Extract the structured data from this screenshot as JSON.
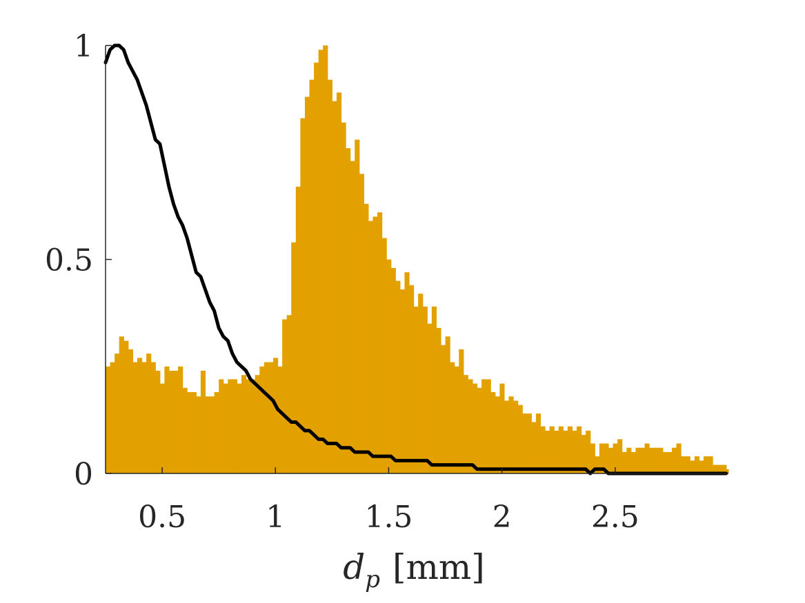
{
  "chart_data": {
    "type": "bar",
    "title": "",
    "xlabel": "d_p [mm]",
    "xlabel_parts": {
      "symbol": "d",
      "subscript": "p",
      "unit": "[mm]"
    },
    "ylabel": "",
    "xlim": [
      0.25,
      3.0
    ],
    "ylim": [
      0,
      1
    ],
    "xticks": [
      0.5,
      1,
      1.5,
      2,
      2.5
    ],
    "xtick_labels": [
      "0.5",
      "1",
      "1.5",
      "2",
      "2.5"
    ],
    "yticks": [
      0,
      0.5,
      1
    ],
    "ytick_labels": [
      "0",
      "0.5",
      "1"
    ],
    "grid": false,
    "legend": "none",
    "colors": {
      "histogram": "#E3A100",
      "curve": "#000000",
      "axis": "#262626"
    },
    "histogram": {
      "bin_width": 0.02,
      "bin_start": 0.25,
      "values": [
        0.25,
        0.26,
        0.28,
        0.32,
        0.31,
        0.29,
        0.26,
        0.27,
        0.26,
        0.28,
        0.26,
        0.24,
        0.21,
        0.25,
        0.24,
        0.24,
        0.25,
        0.2,
        0.19,
        0.19,
        0.18,
        0.24,
        0.18,
        0.18,
        0.19,
        0.22,
        0.21,
        0.22,
        0.22,
        0.21,
        0.23,
        0.22,
        0.22,
        0.23,
        0.25,
        0.26,
        0.26,
        0.27,
        0.25,
        0.36,
        0.37,
        0.54,
        0.67,
        0.83,
        0.88,
        0.92,
        0.96,
        0.99,
        1.0,
        0.92,
        0.87,
        0.89,
        0.82,
        0.76,
        0.73,
        0.78,
        0.7,
        0.63,
        0.59,
        0.6,
        0.61,
        0.55,
        0.5,
        0.48,
        0.45,
        0.43,
        0.47,
        0.44,
        0.39,
        0.42,
        0.39,
        0.35,
        0.39,
        0.34,
        0.3,
        0.32,
        0.26,
        0.25,
        0.29,
        0.23,
        0.22,
        0.21,
        0.2,
        0.22,
        0.22,
        0.19,
        0.18,
        0.21,
        0.17,
        0.18,
        0.17,
        0.16,
        0.14,
        0.14,
        0.12,
        0.14,
        0.11,
        0.1,
        0.11,
        0.1,
        0.11,
        0.1,
        0.11,
        0.1,
        0.11,
        0.09,
        0.1,
        0.07,
        0.04,
        0.07,
        0.07,
        0.06,
        0.07,
        0.08,
        0.05,
        0.06,
        0.05,
        0.06,
        0.06,
        0.07,
        0.06,
        0.06,
        0.06,
        0.05,
        0.05,
        0.06,
        0.07,
        0.04,
        0.04,
        0.03,
        0.04,
        0.03,
        0.04,
        0.04,
        0.02,
        0.02,
        0.02,
        0.01
      ]
    },
    "series": [
      {
        "type": "line",
        "x": [
          0.25,
          0.27,
          0.29,
          0.31,
          0.33,
          0.35,
          0.37,
          0.39,
          0.41,
          0.43,
          0.45,
          0.47,
          0.49,
          0.51,
          0.53,
          0.55,
          0.57,
          0.59,
          0.61,
          0.63,
          0.65,
          0.67,
          0.69,
          0.71,
          0.73,
          0.75,
          0.77,
          0.79,
          0.81,
          0.83,
          0.85,
          0.87,
          0.89,
          0.91,
          0.93,
          0.95,
          0.97,
          0.99,
          1.01,
          1.03,
          1.05,
          1.07,
          1.09,
          1.11,
          1.13,
          1.15,
          1.17,
          1.19,
          1.21,
          1.23,
          1.25,
          1.27,
          1.29,
          1.31,
          1.33,
          1.35,
          1.37,
          1.39,
          1.41,
          1.43,
          1.45,
          1.47,
          1.49,
          1.51,
          1.53,
          1.55,
          1.57,
          1.59,
          1.61,
          1.63,
          1.65,
          1.67,
          1.69,
          1.71,
          1.73,
          1.75,
          1.77,
          1.79,
          1.81,
          1.83,
          1.85,
          1.87,
          1.89,
          1.91,
          1.93,
          1.95,
          1.97,
          1.99,
          2.01,
          2.03,
          2.05,
          2.07,
          2.09,
          2.11,
          2.13,
          2.15,
          2.17,
          2.19,
          2.21,
          2.23,
          2.25,
          2.27,
          2.29,
          2.31,
          2.33,
          2.35,
          2.37,
          2.39,
          2.41,
          2.43,
          2.45,
          2.47,
          2.49,
          2.51,
          2.53,
          2.55,
          2.57,
          2.59,
          2.61,
          2.63,
          2.65,
          2.67,
          2.69,
          2.71,
          2.73,
          2.75,
          2.77,
          2.79,
          2.81,
          2.83,
          2.85,
          2.87,
          2.89,
          2.91,
          2.93,
          2.95,
          2.97,
          2.99
        ],
        "y": [
          0.96,
          0.99,
          1.0,
          1.0,
          0.99,
          0.96,
          0.94,
          0.92,
          0.89,
          0.86,
          0.82,
          0.78,
          0.77,
          0.72,
          0.67,
          0.63,
          0.6,
          0.58,
          0.55,
          0.51,
          0.47,
          0.46,
          0.43,
          0.4,
          0.38,
          0.34,
          0.32,
          0.31,
          0.28,
          0.26,
          0.25,
          0.24,
          0.22,
          0.21,
          0.2,
          0.19,
          0.18,
          0.17,
          0.15,
          0.14,
          0.13,
          0.12,
          0.12,
          0.11,
          0.1,
          0.1,
          0.09,
          0.08,
          0.08,
          0.07,
          0.07,
          0.07,
          0.06,
          0.06,
          0.06,
          0.05,
          0.05,
          0.05,
          0.05,
          0.04,
          0.04,
          0.04,
          0.04,
          0.04,
          0.03,
          0.03,
          0.03,
          0.03,
          0.03,
          0.03,
          0.03,
          0.03,
          0.02,
          0.02,
          0.02,
          0.02,
          0.02,
          0.02,
          0.02,
          0.02,
          0.02,
          0.02,
          0.01,
          0.01,
          0.01,
          0.01,
          0.01,
          0.01,
          0.01,
          0.01,
          0.01,
          0.01,
          0.01,
          0.01,
          0.01,
          0.01,
          0.01,
          0.01,
          0.01,
          0.01,
          0.01,
          0.01,
          0.01,
          0.01,
          0.01,
          0.01,
          0.01,
          0.0,
          0.01,
          0.01,
          0.01,
          0.0,
          0.0,
          0.0,
          0.0,
          0.0,
          0.0,
          0.0,
          0.0,
          0.0,
          0.0,
          0.0,
          0.0,
          0.0,
          0.0,
          0.0,
          0.0,
          0.0,
          0.0,
          0.0,
          0.0,
          0.0,
          0.0,
          0.0,
          0.0,
          0.0,
          0.0,
          0.0
        ]
      }
    ]
  }
}
